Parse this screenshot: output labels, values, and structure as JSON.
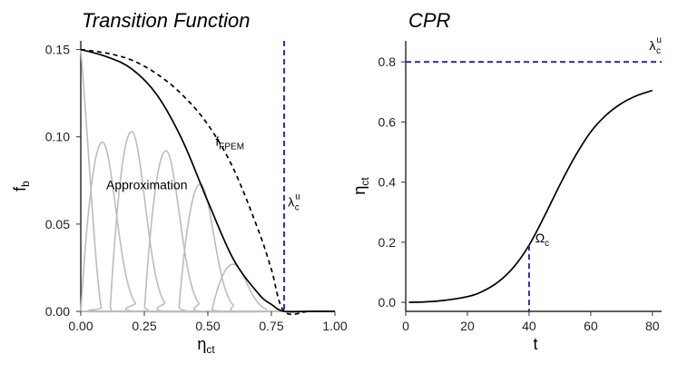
{
  "chart_data": [
    {
      "type": "line",
      "title": "Transition Function",
      "xlabel": "η",
      "xlabel_sub": "ct",
      "ylabel": "f",
      "ylabel_sub": "b",
      "xlim": [
        0,
        1
      ],
      "ylim": [
        0,
        0.155
      ],
      "xticks": [
        0.0,
        0.25,
        0.5,
        0.75,
        1.0
      ],
      "xtick_labels": [
        "0.00",
        "0.25",
        "0.50",
        "0.75",
        "1.00"
      ],
      "yticks": [
        0.0,
        0.05,
        0.1,
        0.15
      ],
      "ytick_labels": [
        "0.00",
        "0.05",
        "0.10",
        "0.15"
      ],
      "series": [
        {
          "name": "Approximation",
          "style": "solid",
          "color": "#000000",
          "x": [
            0.0,
            0.1,
            0.2,
            0.3,
            0.4,
            0.5,
            0.6,
            0.7,
            0.75,
            0.8,
            0.9,
            1.0
          ],
          "y": [
            0.15,
            0.146,
            0.139,
            0.124,
            0.098,
            0.063,
            0.03,
            0.01,
            0.004,
            0.0,
            0.0,
            0.0
          ]
        },
        {
          "name": "f_FPEM",
          "style": "dashed",
          "color": "#000000",
          "x": [
            0.0,
            0.1,
            0.2,
            0.3,
            0.4,
            0.5,
            0.6,
            0.7,
            0.75,
            0.8,
            0.9,
            1.0
          ],
          "y": [
            0.15,
            0.148,
            0.144,
            0.136,
            0.124,
            0.107,
            0.082,
            0.046,
            0.024,
            0.0,
            0.0,
            0.0
          ]
        }
      ],
      "basis_functions": {
        "color": "#bdbdbd",
        "curves": [
          {
            "center": 0.0,
            "peak": 0.15
          },
          {
            "center": 0.085,
            "peak": 0.097
          },
          {
            "center": 0.2,
            "peak": 0.103
          },
          {
            "center": 0.335,
            "peak": 0.092
          },
          {
            "center": 0.47,
            "peak": 0.073
          },
          {
            "center": 0.6,
            "peak": 0.027
          }
        ]
      },
      "vline": {
        "x": 0.8,
        "color": "#1a1ad6",
        "style": "dashed"
      },
      "annotations": [
        {
          "text": "f",
          "sub": "FPEM",
          "x": 0.53,
          "y": 0.095
        },
        {
          "text": "Approximation",
          "x": 0.1,
          "y": 0.07
        },
        {
          "text": "λ",
          "sub": "c",
          "sup": "u",
          "x": 0.815,
          "y": 0.06
        }
      ]
    },
    {
      "type": "line",
      "title": "CPR",
      "xlabel": "t",
      "ylabel": "η",
      "ylabel_sub": "ct",
      "xlim": [
        0,
        83
      ],
      "ylim": [
        -0.03,
        0.87
      ],
      "xticks": [
        0,
        20,
        40,
        60,
        80
      ],
      "xtick_labels": [
        "0",
        "20",
        "40",
        "60",
        "80"
      ],
      "yticks": [
        0.0,
        0.2,
        0.4,
        0.6,
        0.8
      ],
      "ytick_labels": [
        "0.0",
        "0.2",
        "0.4",
        "0.6",
        "0.8"
      ],
      "series": [
        {
          "name": "CPR",
          "style": "solid",
          "color": "#000000",
          "x": [
            1,
            10,
            20,
            25,
            30,
            35,
            40,
            45,
            50,
            55,
            60,
            65,
            70,
            75,
            80
          ],
          "y": [
            0.0,
            0.004,
            0.019,
            0.037,
            0.068,
            0.117,
            0.19,
            0.287,
            0.391,
            0.487,
            0.567,
            0.623,
            0.662,
            0.688,
            0.705
          ]
        }
      ],
      "hline": {
        "y": 0.8,
        "color": "#1a1ad6",
        "style": "dashed"
      },
      "vline": {
        "x": 40,
        "y_end": 0.19,
        "color": "#1a1ad6",
        "style": "dashed"
      },
      "annotations": [
        {
          "text": "λ",
          "sub": "c",
          "sup": "u",
          "x": 79,
          "y": 0.84,
          "color": "#1a1ad6"
        },
        {
          "text": "Ω",
          "sub": "c",
          "x": 42,
          "y": 0.2,
          "color": "#1a1ad6"
        }
      ]
    }
  ]
}
